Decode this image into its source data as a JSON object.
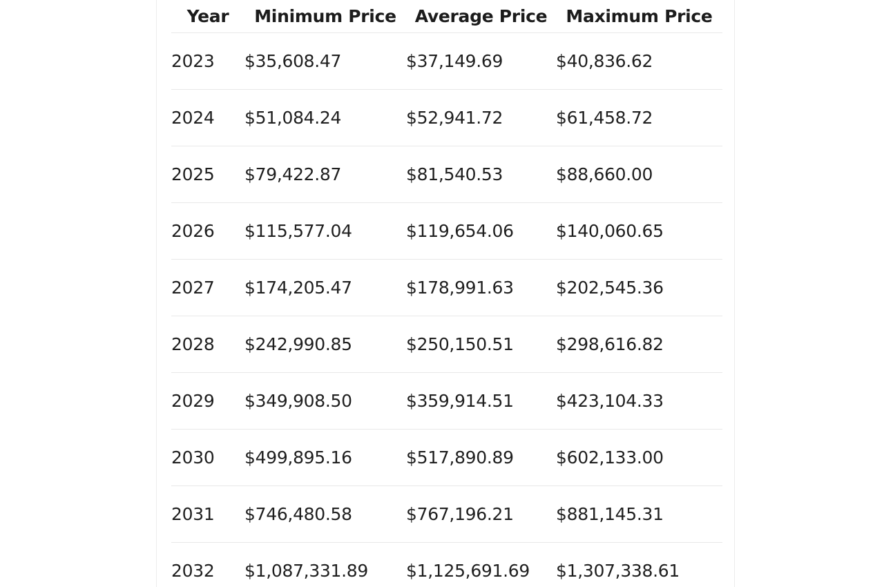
{
  "table": {
    "headers": [
      "Year",
      "Minimum Price",
      "Average Price",
      "Maximum Price"
    ],
    "rows": [
      [
        "2023",
        "$35,608.47",
        "$37,149.69",
        "$40,836.62"
      ],
      [
        "2024",
        "$51,084.24",
        "$52,941.72",
        "$61,458.72"
      ],
      [
        "2025",
        "$79,422.87",
        "$81,540.53",
        "$88,660.00"
      ],
      [
        "2026",
        "$115,577.04",
        "$119,654.06",
        "$140,060.65"
      ],
      [
        "2027",
        "$174,205.47",
        "$178,991.63",
        "$202,545.36"
      ],
      [
        "2028",
        "$242,990.85",
        "$250,150.51",
        "$298,616.82"
      ],
      [
        "2029",
        "$349,908.50",
        "$359,914.51",
        "$423,104.33"
      ],
      [
        "2030",
        "$499,895.16",
        "$517,890.89",
        "$602,133.00"
      ],
      [
        "2031",
        "$746,480.58",
        "$767,196.21",
        "$881,145.31"
      ],
      [
        "2032",
        "$1,087,331.89",
        "$1,125,691.69",
        "$1,307,338.61"
      ]
    ]
  }
}
